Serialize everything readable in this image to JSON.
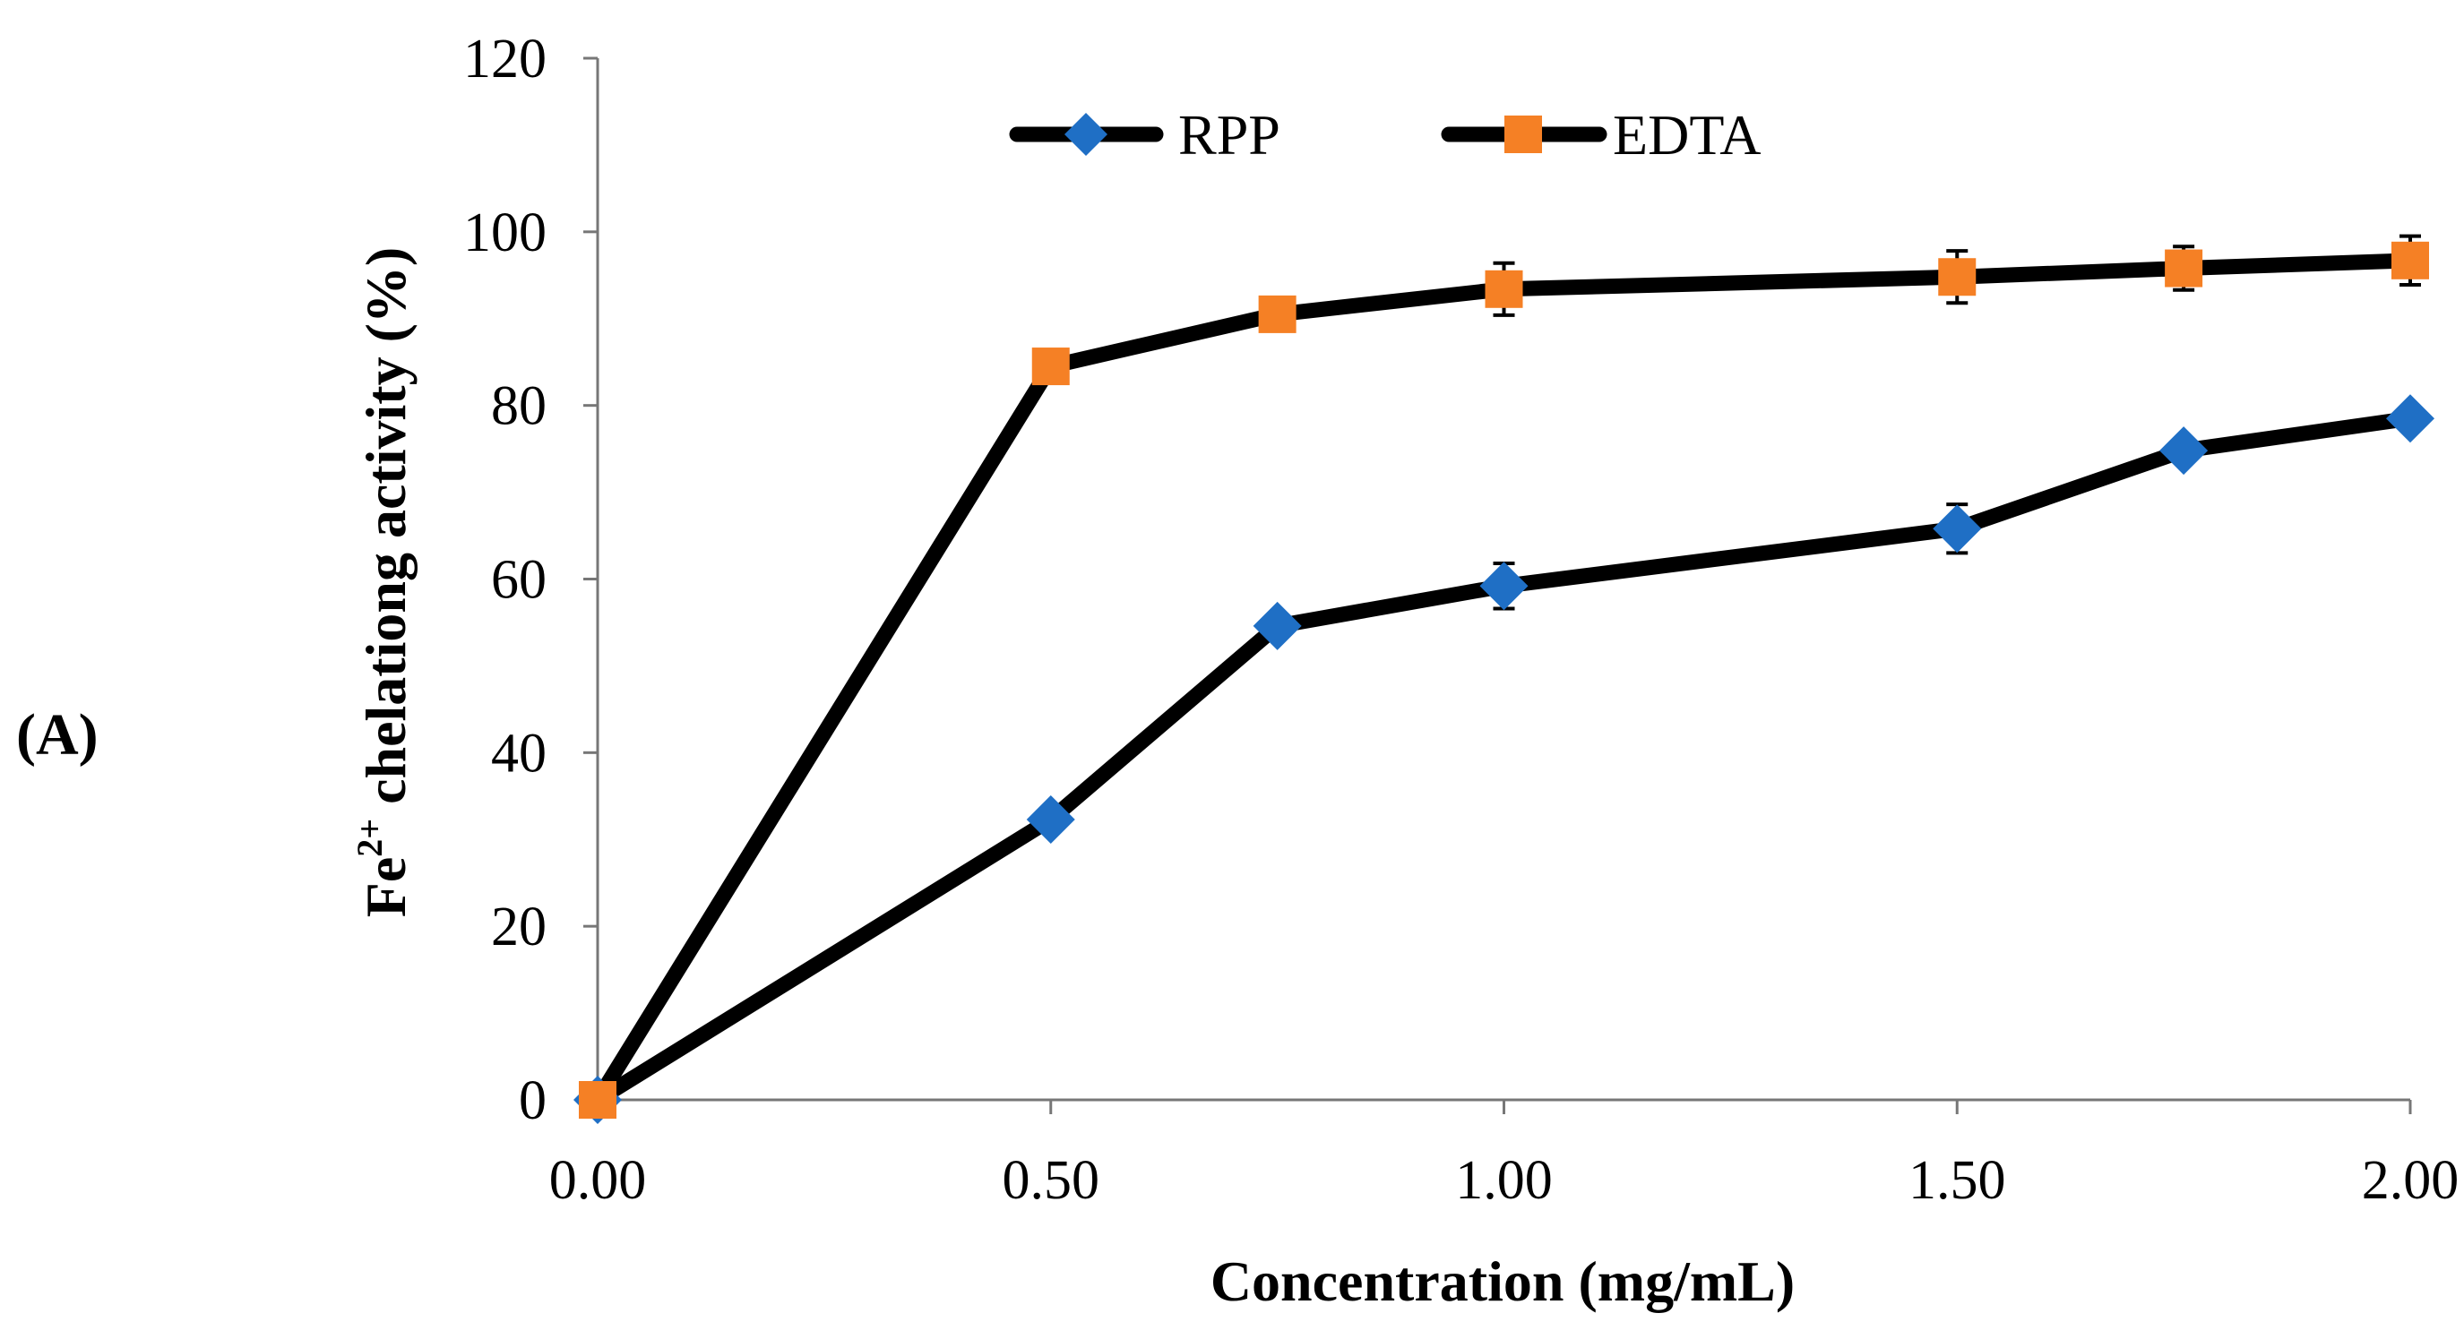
{
  "chart_data": {
    "type": "line",
    "panel_label": "(A)",
    "title": "",
    "xlabel": "Concentration (mg/mL)",
    "ylabel": {
      "prefix": "Fe",
      "superscript": "2+",
      "suffix": " chelationg activity (%)"
    },
    "x": [
      0.0,
      0.5,
      0.75,
      1.0,
      1.5,
      1.75,
      2.0
    ],
    "xlim": [
      0,
      2
    ],
    "ylim": [
      0,
      120
    ],
    "x_ticks": [
      0.0,
      0.5,
      1.0,
      1.5,
      2.0
    ],
    "x_tick_labels": [
      "0.00",
      "0.50",
      "1.00",
      "1.50",
      "2.00"
    ],
    "y_ticks": [
      0,
      20,
      40,
      60,
      80,
      100,
      120
    ],
    "y_tick_labels": [
      "0",
      "20",
      "40",
      "60",
      "80",
      "100",
      "120"
    ],
    "grid": false,
    "legend_position": "top-center",
    "line_color": "#000000",
    "series": [
      {
        "name": "RPP",
        "marker": "diamond",
        "marker_color": "#1F6FC5",
        "values": [
          0,
          32.3,
          54.6,
          59.2,
          65.8,
          74.8,
          78.5
        ],
        "errors": [
          0,
          0,
          0,
          2.6,
          2.8,
          0,
          0
        ]
      },
      {
        "name": "EDTA",
        "marker": "square",
        "marker_color": "#F58025",
        "values": [
          0,
          84.5,
          90.5,
          93.4,
          94.8,
          95.8,
          96.7
        ],
        "errors": [
          0,
          0,
          0,
          3.0,
          3.0,
          2.5,
          2.8
        ]
      }
    ]
  }
}
